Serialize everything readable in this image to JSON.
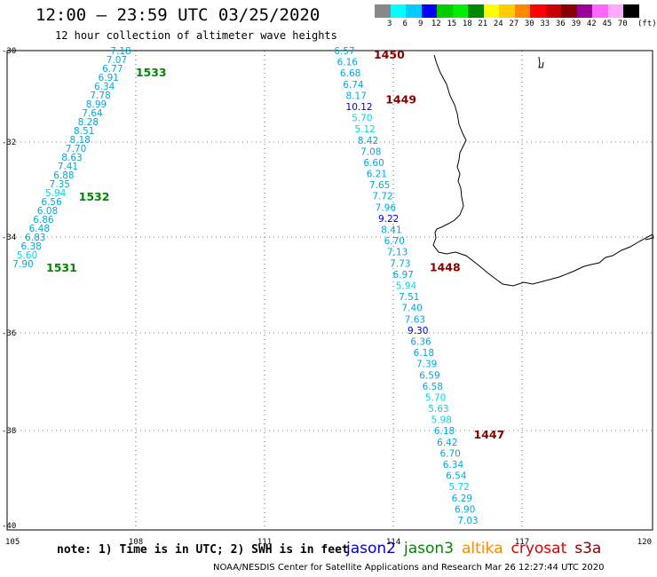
{
  "header": {
    "title": "12:00 – 23:59 UTC 03/25/2020",
    "subtitle": "12 hour collection of altimeter wave heights"
  },
  "scale": {
    "colors": [
      "#888888",
      "#00ffff",
      "#00ccff",
      "#0000ff",
      "#00cc00",
      "#00ee00",
      "#008800",
      "#ffff00",
      "#ffcc00",
      "#ff8800",
      "#ff0000",
      "#cc0000",
      "#880000",
      "#990099",
      "#ff66ff",
      "#ffaaff",
      "#000000"
    ],
    "labels": [
      "3",
      "6",
      "9",
      "12",
      "15",
      "18",
      "21",
      "24",
      "27",
      "30",
      "33",
      "36",
      "39",
      "42",
      "45",
      "70"
    ],
    "unit": "(ft)"
  },
  "axes": {
    "lon_ticks": [
      "105",
      "108",
      "111",
      "114",
      "117",
      "120"
    ],
    "lat_ticks": [
      "-30",
      "-32",
      "-34",
      "-36",
      "-38",
      "-40"
    ]
  },
  "tracks": {
    "west": {
      "values": [
        "7.18",
        "7.07",
        "6.77",
        "6.91",
        "6.34",
        "7.78",
        "8.99",
        "7.64",
        "8.28",
        "8.51",
        "8.18",
        "7.70",
        "8.63",
        "7.41",
        "6.88",
        "7.35",
        "5.94",
        "6.56",
        "6.08",
        "6.86",
        "6.48",
        "6.83",
        "6.38",
        "5.60",
        "7.90"
      ],
      "times": [
        {
          "label": "1533",
          "row": 2
        },
        {
          "label": "1532",
          "row": 16
        },
        {
          "label": "1531",
          "row": 24
        }
      ]
    },
    "east": {
      "values": [
        "6.57",
        "6.16",
        "6.68",
        "6.74",
        "8.17",
        "10.12",
        "5.70",
        "5.12",
        "8.42",
        "7.08",
        "6.60",
        "6.21",
        "7.65",
        "7.72",
        "7.96",
        "9.22",
        "8.41",
        "6.70",
        "7.13",
        "7.73",
        "6.97",
        "5.94",
        "7.51",
        "7.40",
        "7.63",
        "9.30",
        "6.36",
        "6.18",
        "7.39",
        "6.59",
        "6.58",
        "5.70",
        "5.63",
        "5.98",
        "6.18",
        "6.42",
        "6.70",
        "6.34",
        "6.54",
        "5.72",
        "6.29",
        "6.90",
        "7.03"
      ],
      "times": [
        {
          "label": "1450",
          "row": 0
        },
        {
          "label": "1449",
          "row": 4
        },
        {
          "label": "1448",
          "row": 19
        },
        {
          "label": "1447",
          "row": 34
        }
      ]
    }
  },
  "footer": {
    "note": "note: 1) Time is in UTC; 2) SWH is in feet",
    "satellites": [
      {
        "name": "jason2",
        "color": "#0000cc"
      },
      {
        "name": "jason3",
        "color": "#008800"
      },
      {
        "name": "altika",
        "color": "#ff8800"
      },
      {
        "name": "cryosat",
        "color": "#dd0000"
      },
      {
        "name": "s3a",
        "color": "#880000"
      }
    ],
    "credit": "NOAA/NESDIS Center for Satellite Applications and Research    Mar 26 12:27:44 UTC 2020"
  }
}
